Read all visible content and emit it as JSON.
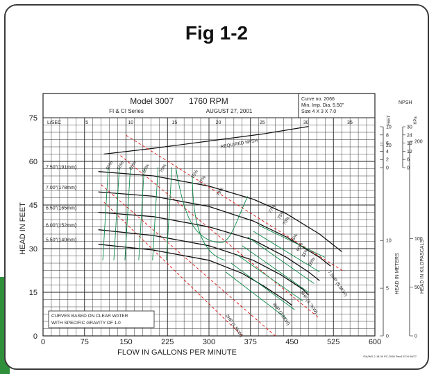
{
  "figure": {
    "title": "Fig 1-2"
  },
  "chart_data": {
    "type": "line",
    "header": {
      "model": "Model 3007",
      "rpm": "1760 RPM",
      "series": "FI & CI Series",
      "date": "AUGUST 27, 2001",
      "curve_no": "Curve no. 2066",
      "min_imp": "Min. Imp. Dia. 5.50\"",
      "size": "Size 4 X 3 X 7.0"
    },
    "xlabel": "FLOW IN GALLONS PER MINUTE",
    "ylabel": "HEAD IN FEET",
    "xlim": [
      0,
      600
    ],
    "ylim": [
      0,
      75
    ],
    "x_ticks": [
      0,
      75,
      150,
      225,
      300,
      375,
      450,
      525,
      600
    ],
    "y_ticks": [
      0,
      15,
      30,
      45,
      60,
      75
    ],
    "top_axis": {
      "label": "L/SEC",
      "ticks": [
        5,
        10,
        15,
        20,
        25,
        30,
        35
      ]
    },
    "npsh_axis": {
      "title": "NPSH",
      "feet_label": "FEET",
      "kpa_label": "KPa",
      "feet_ticks": [
        0,
        2,
        4,
        6,
        8,
        10
      ],
      "kpa_ticks": [
        0,
        6,
        12,
        18,
        24,
        30
      ]
    },
    "right_axes": {
      "meters_label": "HEAD IN METERS",
      "meters_ticks": [
        0,
        5,
        10,
        20
      ],
      "kpa_label": "HEAD IN KILOPASCALS",
      "kpa_ticks": [
        0,
        50,
        100,
        200
      ]
    },
    "note": [
      "CURVES BASED ON CLEAR WATER",
      "WITH SPECIFIC GRAVITY OF 1.0"
    ],
    "footer_code": "/SA/WS-2-18.00 PC-2066 Rev4 ECH 08/27",
    "required_npsh_label": "REQUIRED NPSH",
    "required_npsh": [
      [
        110,
        62.5
      ],
      [
        200,
        64.5
      ],
      [
        300,
        67
      ],
      [
        400,
        69.5
      ],
      [
        480,
        72
      ]
    ],
    "series": [
      {
        "name": "7.50\"(191mm)",
        "points": [
          [
            0,
            57
          ],
          [
            100,
            56.5
          ],
          [
            200,
            55
          ],
          [
            300,
            51.5
          ],
          [
            380,
            47
          ],
          [
            440,
            42
          ],
          [
            500,
            35
          ],
          [
            540,
            29
          ]
        ]
      },
      {
        "name": "7.00\"(178mm)",
        "points": [
          [
            0,
            50
          ],
          [
            100,
            49.5
          ],
          [
            200,
            48
          ],
          [
            300,
            44.5
          ],
          [
            380,
            39.5
          ],
          [
            440,
            34
          ],
          [
            500,
            27
          ],
          [
            520,
            24
          ]
        ]
      },
      {
        "name": "6.50\"(165mm)",
        "points": [
          [
            0,
            43
          ],
          [
            100,
            42.5
          ],
          [
            200,
            41
          ],
          [
            300,
            37.5
          ],
          [
            380,
            33
          ],
          [
            440,
            27
          ],
          [
            480,
            22
          ],
          [
            500,
            19
          ]
        ]
      },
      {
        "name": "6.00\"(152mm)",
        "points": [
          [
            0,
            37
          ],
          [
            100,
            36.5
          ],
          [
            200,
            34.5
          ],
          [
            300,
            31
          ],
          [
            380,
            26
          ],
          [
            430,
            21
          ],
          [
            470,
            16
          ],
          [
            480,
            14
          ]
        ]
      },
      {
        "name": "5.50\"(140mm)",
        "points": [
          [
            0,
            32
          ],
          [
            100,
            31.5
          ],
          [
            200,
            29.5
          ],
          [
            300,
            26
          ],
          [
            360,
            21.5
          ],
          [
            400,
            17
          ],
          [
            440,
            12
          ],
          [
            450,
            10.5
          ]
        ]
      }
    ],
    "efficiency_labels": [
      "50%",
      "55%",
      "60%",
      "65%",
      "70%",
      "75%",
      "77%",
      "79%",
      "77%",
      "75%",
      "70%",
      "65%",
      "60%",
      "55%",
      "50%"
    ],
    "hp_labels": [
      "7.5HP (5.6KW)",
      "5HP (3.7KW)",
      "3HP (2.2KW)",
      "2HP (1.5KW)"
    ]
  }
}
